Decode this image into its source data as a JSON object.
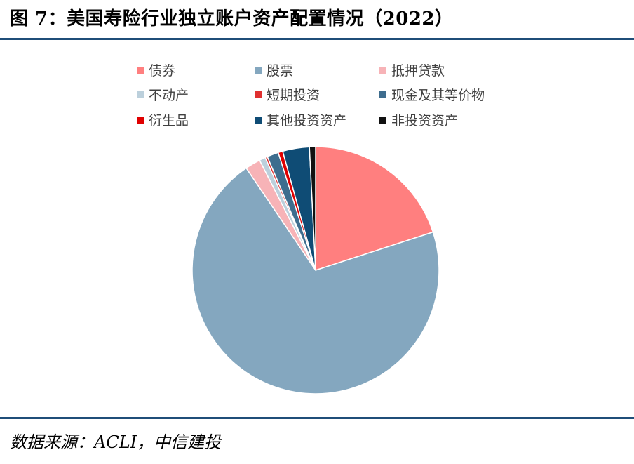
{
  "header": {
    "title": "图 7：美国寿险行业独立账户资产配置情况（2022）"
  },
  "footer": {
    "source": "数据来源：ACLI，中信建投"
  },
  "colors": {
    "rule": "#1f4e79"
  },
  "chart_data": {
    "type": "pie",
    "title": "",
    "legend_position": "top",
    "slices": [
      {
        "name": "债券",
        "value": 20.0,
        "color": "#ff7f7f"
      },
      {
        "name": "股票",
        "value": 70.5,
        "color": "#84a7bf"
      },
      {
        "name": "抵押贷款",
        "value": 2.0,
        "color": "#f7b3b7"
      },
      {
        "name": "不动产",
        "value": 0.8,
        "color": "#bcd0dc"
      },
      {
        "name": "短期投资",
        "value": 0.3,
        "color": "#e03030"
      },
      {
        "name": "现金及其等价物",
        "value": 1.5,
        "color": "#3e6d8e"
      },
      {
        "name": "衍生品",
        "value": 0.6,
        "color": "#e00000"
      },
      {
        "name": "其他投资资产",
        "value": 3.5,
        "color": "#0f4c75"
      },
      {
        "name": "非投资资产",
        "value": 0.8,
        "color": "#111111"
      }
    ]
  }
}
